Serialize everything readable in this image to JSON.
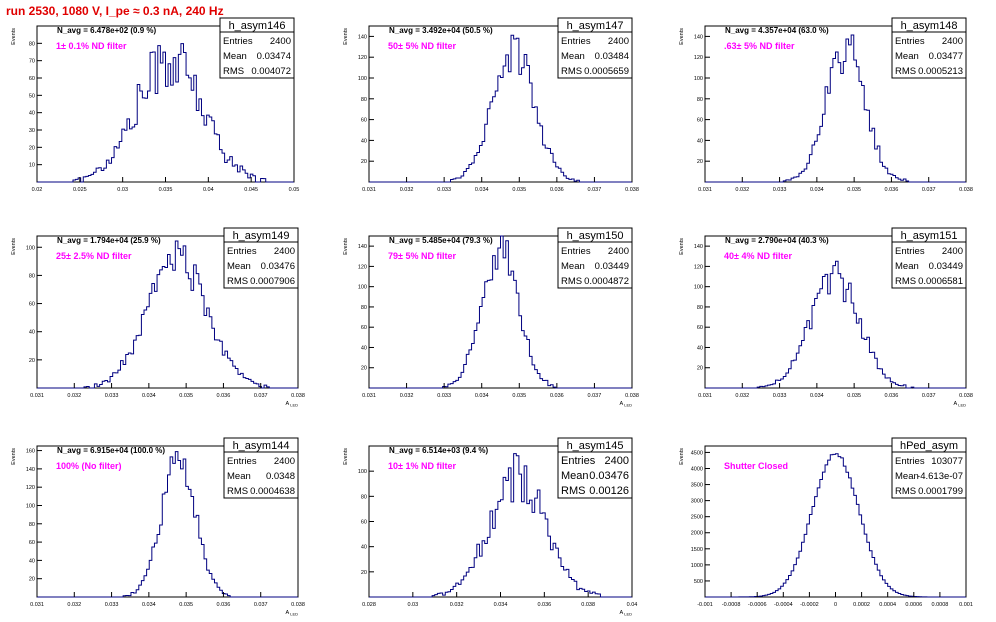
{
  "page": {
    "title": "run 2530,  1080 V, I_pe ≈ 0.3 nA, 240 Hz",
    "title_color": "#e00000"
  },
  "style": {
    "hist_color": "#000080",
    "annotation_color": "#ff00ff",
    "frame_color": "#000000"
  },
  "chart_data": [
    {
      "type": "bar",
      "name": "h_asym146",
      "ylabel": "Events",
      "xlabel": "",
      "nav": "N_avg = 6.478e+02 (0.9 %)",
      "annotation": "1± 0.1% ND filter",
      "stats": {
        "entries": "2400",
        "mean": "0.03474",
        "rms": "0.004072"
      },
      "xlim": [
        0.0185,
        0.05
      ],
      "ylim": [
        0,
        90
      ],
      "xticks": [
        "0.02",
        "0.025",
        "0.03",
        "0.035",
        "0.04",
        "0.045",
        "0.05"
      ],
      "yticks": [
        "10",
        "20",
        "30",
        "40",
        "50",
        "60",
        "70",
        "80"
      ],
      "hist": {
        "mean": 0.03474,
        "sigma": 0.004072,
        "peak": 70,
        "noise": 0.25
      }
    },
    {
      "type": "bar",
      "name": "h_asym147",
      "ylabel": "Events",
      "xlabel": "",
      "nav": "N_avg = 3.492e+04 (50.5 %)",
      "annotation": "50± 5% ND filter",
      "stats": {
        "entries": "2400",
        "mean": "0.03484",
        "rms": "0.0005659"
      },
      "xlim": [
        0.031,
        0.038
      ],
      "ylim": [
        0,
        150
      ],
      "xticks": [
        "0.031",
        "0.032",
        "0.033",
        "0.034",
        "0.035",
        "0.036",
        "0.037",
        "0.038"
      ],
      "yticks": [
        "20",
        "40",
        "60",
        "80",
        "100",
        "120",
        "140"
      ],
      "hist": {
        "mean": 0.03484,
        "sigma": 0.0005659,
        "peak": 125,
        "noise": 0.18
      }
    },
    {
      "type": "bar",
      "name": "h_asym148",
      "ylabel": "Events",
      "xlabel": "",
      "nav": "N_avg = 4.357e+04 (63.0 %)",
      "annotation": ".63± 5% ND filter",
      "stats": {
        "entries": "2400",
        "mean": "0.03477",
        "rms": "0.0005213"
      },
      "xlim": [
        0.031,
        0.038
      ],
      "ylim": [
        0,
        150
      ],
      "xticks": [
        "0.031",
        "0.032",
        "0.033",
        "0.034",
        "0.035",
        "0.036",
        "0.037",
        "0.038"
      ],
      "yticks": [
        "20",
        "40",
        "60",
        "80",
        "100",
        "120",
        "140"
      ],
      "hist": {
        "mean": 0.03477,
        "sigma": 0.0005213,
        "peak": 130,
        "noise": 0.18
      }
    },
    {
      "type": "bar",
      "name": "h_asym149",
      "ylabel": "Events",
      "xlabel": "A_LED",
      "nav": "N_avg = 1.794e+04 (25.9 %)",
      "annotation": "25± 2.5% ND filter",
      "stats": {
        "entries": "2400",
        "mean": "0.03476",
        "rms": "0.0007906"
      },
      "xlim": [
        0.031,
        0.038
      ],
      "ylim": [
        0,
        108
      ],
      "xticks": [
        "0.031",
        "0.032",
        "0.033",
        "0.034",
        "0.035",
        "0.036",
        "0.037",
        "0.038"
      ],
      "yticks": [
        "20",
        "40",
        "60",
        "80",
        "100"
      ],
      "hist": {
        "mean": 0.03476,
        "sigma": 0.0007906,
        "peak": 93,
        "noise": 0.14
      }
    },
    {
      "type": "bar",
      "name": "h_asym150",
      "ylabel": "Events",
      "xlabel": "A_LED",
      "nav": "N_avg = 5.485e+04 (79.3 %)",
      "annotation": "79± 5% ND filter",
      "stats": {
        "entries": "2400",
        "mean": "0.03449",
        "rms": "0.0004872"
      },
      "xlim": [
        0.031,
        0.038
      ],
      "ylim": [
        0,
        150
      ],
      "xticks": [
        "0.031",
        "0.032",
        "0.033",
        "0.034",
        "0.035",
        "0.036",
        "0.037",
        "0.038"
      ],
      "yticks": [
        "20",
        "40",
        "60",
        "80",
        "100",
        "120",
        "140"
      ],
      "hist": {
        "mean": 0.03449,
        "sigma": 0.0004872,
        "peak": 138,
        "noise": 0.15
      }
    },
    {
      "type": "bar",
      "name": "h_asym151",
      "ylabel": "Events",
      "xlabel": "A_LED",
      "nav": "N_avg = 2.790e+04 (40.3 %)",
      "annotation": "40± 4% ND filter",
      "stats": {
        "entries": "2400",
        "mean": "0.03449",
        "rms": "0.0006581"
      },
      "xlim": [
        0.031,
        0.038
      ],
      "ylim": [
        0,
        150
      ],
      "xticks": [
        "0.031",
        "0.032",
        "0.033",
        "0.034",
        "0.035",
        "0.036",
        "0.037",
        "0.038"
      ],
      "yticks": [
        "20",
        "40",
        "60",
        "80",
        "100",
        "120",
        "140"
      ],
      "hist": {
        "mean": 0.03449,
        "sigma": 0.0006581,
        "peak": 108,
        "noise": 0.16
      }
    },
    {
      "type": "bar",
      "name": "h_asym144",
      "ylabel": "Events",
      "xlabel": "A_LED",
      "nav": "N_avg = 6.915e+04 (100.0 %)",
      "annotation": "100% (No filter)",
      "stats": {
        "entries": "2400",
        "mean": "0.0348",
        "rms": "0.0004638"
      },
      "xlim": [
        0.031,
        0.038
      ],
      "ylim": [
        0,
        165
      ],
      "xticks": [
        "0.031",
        "0.032",
        "0.033",
        "0.034",
        "0.035",
        "0.036",
        "0.037",
        "0.038"
      ],
      "yticks": [
        "20",
        "40",
        "60",
        "80",
        "100",
        "120",
        "140",
        "160"
      ],
      "hist": {
        "mean": 0.0348,
        "sigma": 0.0004638,
        "peak": 148,
        "noise": 0.13
      }
    },
    {
      "type": "bar",
      "name": "h_asym145",
      "ylabel": "Events",
      "xlabel": "A_LED",
      "nav": "N_avg = 6.514e+03 (9.4 %)",
      "annotation": "10± 1% ND filter",
      "stats": {
        "entries": "2400",
        "mean": "0.03476",
        "rms": "0.00126"
      },
      "xlim": [
        0.028,
        0.04
      ],
      "ylim": [
        0,
        120
      ],
      "xticks": [
        "0.028",
        "0.03",
        "0.032",
        "0.034",
        "0.036",
        "0.038",
        "0.04"
      ],
      "yticks": [
        "20",
        "40",
        "60",
        "80",
        "100"
      ],
      "hist": {
        "mean": 0.03476,
        "sigma": 0.00126,
        "peak": 95,
        "noise": 0.22
      }
    },
    {
      "type": "bar",
      "name": "hPed_asym",
      "ylabel": "Events",
      "xlabel": "",
      "nav": "",
      "annotation": "Shutter Closed",
      "stats": {
        "entries": "103077",
        "mean": "-4.613e-07",
        "rms": "0.0001799"
      },
      "xlim": [
        -0.001,
        0.001
      ],
      "ylim": [
        0,
        4700
      ],
      "xticks": [
        "-0.001",
        "-0.0008",
        "-0.0006",
        "-0.0004",
        "-0.0002",
        "0",
        "0.0002",
        "0.0004",
        "0.0006",
        "0.0008",
        "0.001"
      ],
      "yticks": [
        "500",
        "1000",
        "1500",
        "2000",
        "2500",
        "3000",
        "3500",
        "4000",
        "4500"
      ],
      "hist": {
        "mean": 0.0,
        "sigma": 0.0001799,
        "peak": 4450,
        "noise": 0.015
      }
    }
  ]
}
